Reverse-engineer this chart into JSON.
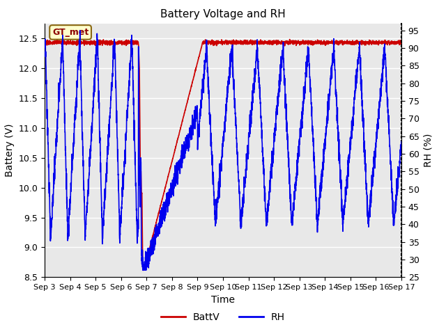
{
  "title": "Battery Voltage and RH",
  "xlabel": "Time",
  "ylabel_left": "Battery (V)",
  "ylabel_right": "RH (%)",
  "ylim_left": [
    8.5,
    12.75
  ],
  "ylim_right": [
    25,
    97
  ],
  "yticks_left": [
    8.5,
    9.0,
    9.5,
    10.0,
    10.5,
    11.0,
    11.5,
    12.0,
    12.5
  ],
  "yticks_right": [
    25,
    30,
    35,
    40,
    45,
    50,
    55,
    60,
    65,
    70,
    75,
    80,
    85,
    90,
    95
  ],
  "xtick_labels": [
    "Sep 3",
    "Sep 4",
    "Sep 5",
    "Sep 6",
    "Sep 7",
    "Sep 8",
    "Sep 9",
    "Sep 10",
    "Sep 11",
    "Sep 12",
    "Sep 13",
    "Sep 14",
    "Sep 15",
    "Sep 16",
    "Sep 17"
  ],
  "annotation_text": "GT_met",
  "battv_color": "#cc0000",
  "rh_color": "#0000ee",
  "legend_battv": "BattV",
  "legend_rh": "RH",
  "bg_color": "#dedede",
  "plot_bg_color": "#e8e8e8"
}
